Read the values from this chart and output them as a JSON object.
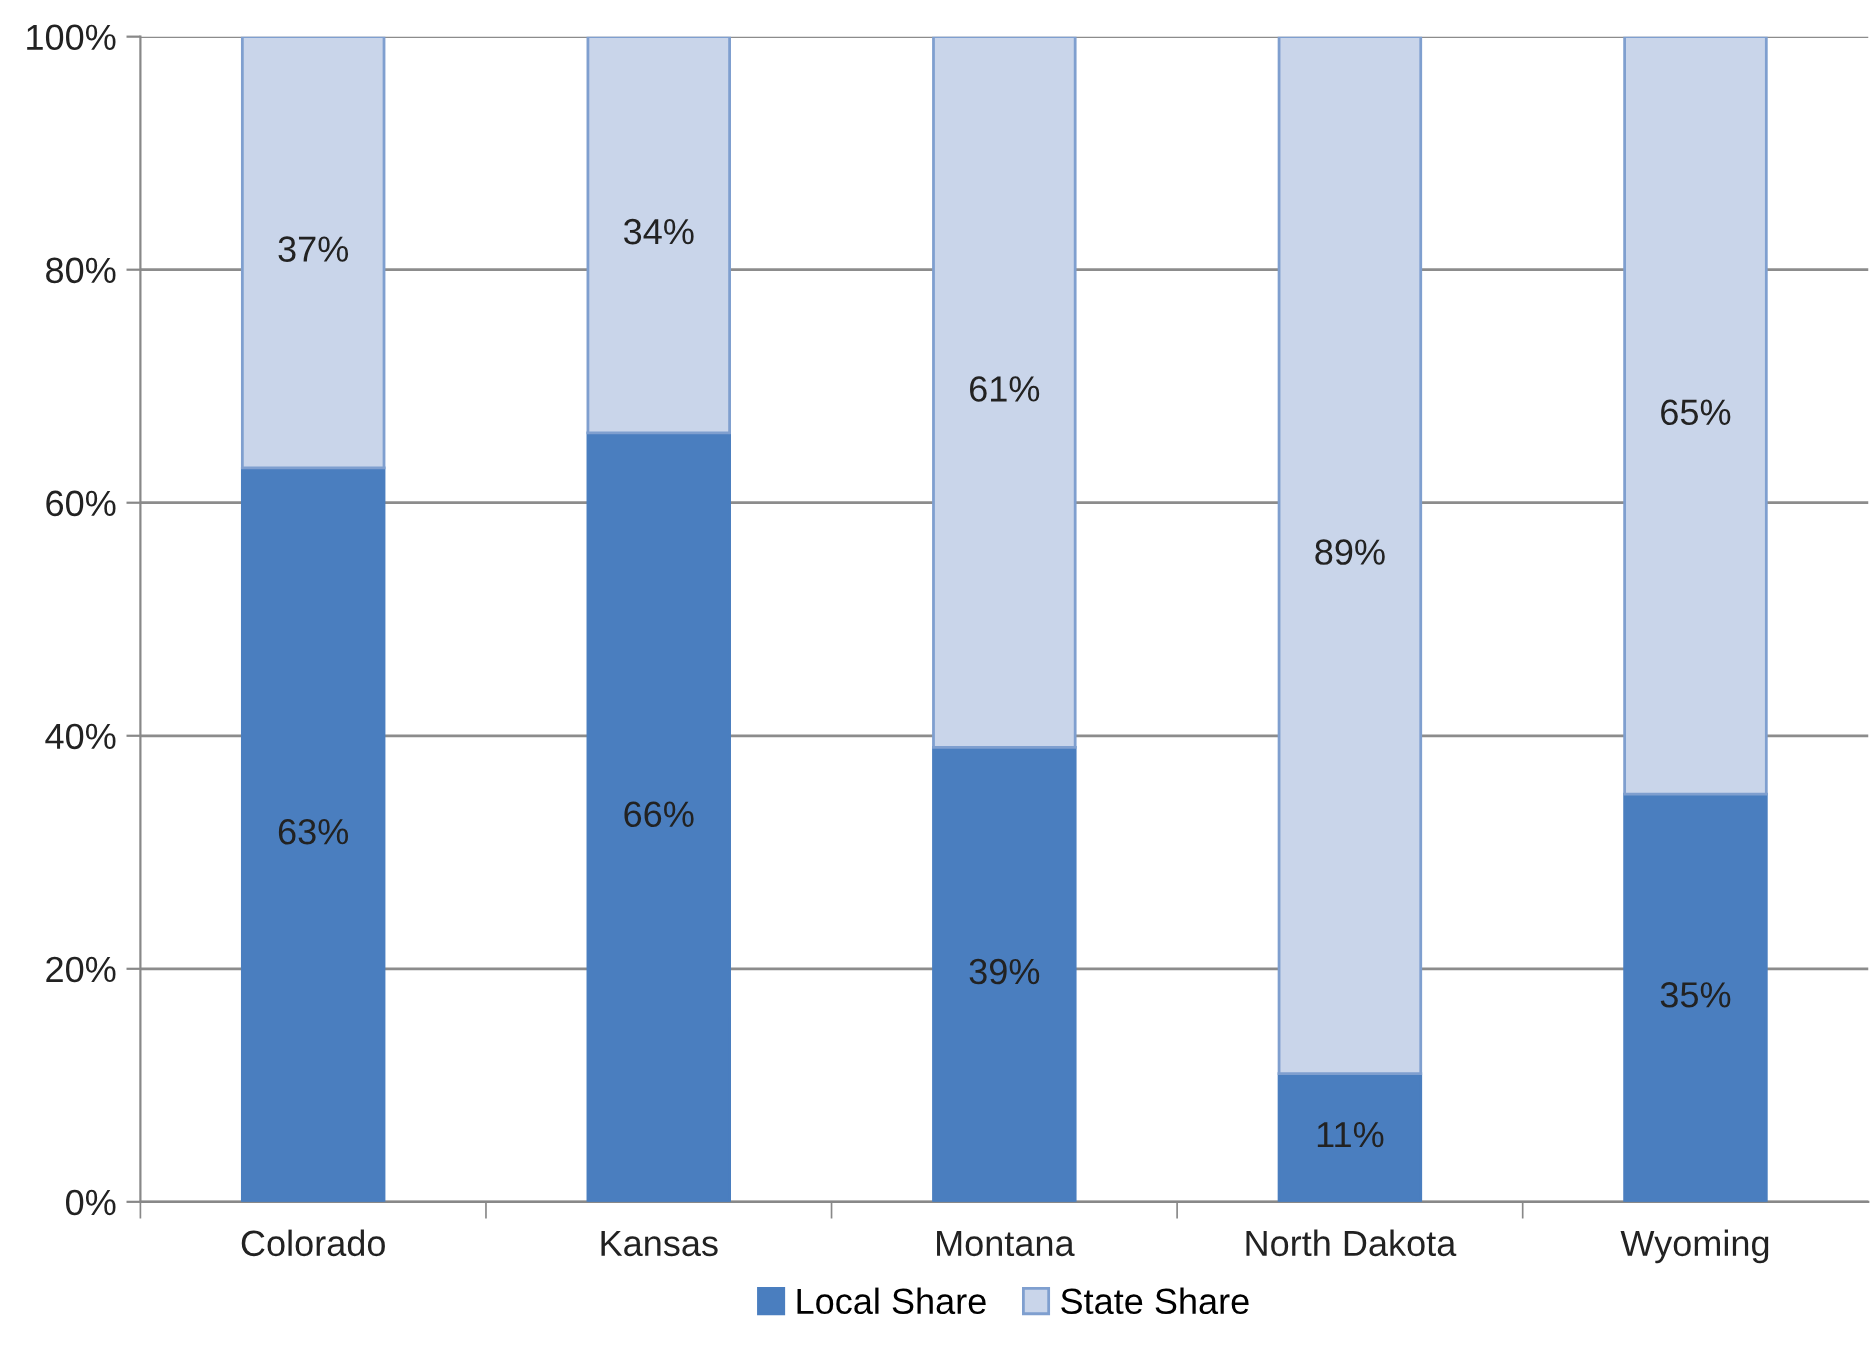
{
  "chart_data": {
    "type": "bar",
    "stacked": true,
    "categories": [
      "Colorado",
      "Kansas",
      "Montana",
      "North Dakota",
      "Wyoming"
    ],
    "series": [
      {
        "name": "Local Share",
        "color": "#4a7ebf",
        "values": [
          63,
          66,
          39,
          11,
          35
        ],
        "value_labels": [
          "63%",
          "66%",
          "39%",
          "11%",
          "35%"
        ]
      },
      {
        "name": "State Share",
        "color": "#c9d5ea",
        "values": [
          37,
          34,
          61,
          89,
          65
        ],
        "value_labels": [
          "37%",
          "34%",
          "61%",
          "89%",
          "65%"
        ]
      }
    ],
    "ylim": [
      0,
      100
    ],
    "yticks": [
      {
        "value": 0,
        "label": "0%"
      },
      {
        "value": 20,
        "label": "20%"
      },
      {
        "value": 40,
        "label": "40%"
      },
      {
        "value": 60,
        "label": "60%"
      },
      {
        "value": 80,
        "label": "80%"
      },
      {
        "value": 100,
        "label": "100%"
      }
    ],
    "grid": "y",
    "legend": "bottom"
  }
}
